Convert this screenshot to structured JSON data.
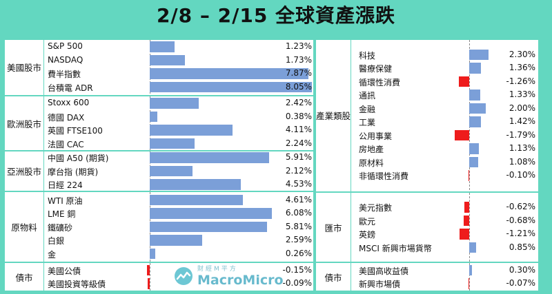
{
  "title": "2/8 – 2/15 全球資產漲跌",
  "watermark": {
    "small": "財經M平方",
    "brand": "MacroMicro"
  },
  "colors": {
    "positive": "#7b9fd8",
    "negative": "#ee1c1c",
    "background": "#63d7c0"
  },
  "chart_data": [
    {
      "type": "bar",
      "orientation": "horizontal",
      "unit": "%",
      "xlim": [
        0,
        8.05
      ],
      "groups": [
        {
          "name": "美國股市",
          "items": [
            {
              "label": "S&P 500",
              "value": 1.23,
              "text": "1.23%"
            },
            {
              "label": "NASDAQ",
              "value": 1.73,
              "text": "1.73%"
            },
            {
              "label": "費半指數",
              "value": 7.87,
              "text": "7.87%"
            },
            {
              "label": "台積電 ADR",
              "value": 8.05,
              "text": "8.05%"
            }
          ]
        },
        {
          "name": "歐洲股市",
          "items": [
            {
              "label": "Stoxx 600",
              "value": 2.42,
              "text": "2.42%"
            },
            {
              "label": "德國 DAX",
              "value": 0.38,
              "text": "0.38%"
            },
            {
              "label": "英國 FTSE100",
              "value": 4.11,
              "text": "4.11%"
            },
            {
              "label": "法國 CAC",
              "value": 2.24,
              "text": "2.24%"
            }
          ]
        },
        {
          "name": "亞洲股市",
          "items": [
            {
              "label": "中國 A50 (期貨)",
              "value": 5.91,
              "text": "5.91%"
            },
            {
              "label": "摩台指 (期貨)",
              "value": 2.12,
              "text": "2.12%"
            },
            {
              "label": "日經 224",
              "value": 4.53,
              "text": "4.53%"
            }
          ]
        },
        {
          "name": "原物料",
          "items": [
            {
              "label": "WTI 原油",
              "value": 4.61,
              "text": "4.61%"
            },
            {
              "label": "LME 銅",
              "value": 6.08,
              "text": "6.08%"
            },
            {
              "label": "鐵礦砂",
              "value": 5.81,
              "text": "5.81%"
            },
            {
              "label": "白銀",
              "value": 2.59,
              "text": "2.59%"
            },
            {
              "label": "金",
              "value": 0.26,
              "text": "0.26%"
            }
          ]
        },
        {
          "name": "債市",
          "items": [
            {
              "label": "美國公債",
              "value": -0.15,
              "text": "-0.15%"
            },
            {
              "label": "美國投資等級債",
              "value": -0.09,
              "text": "-0.09%"
            }
          ]
        }
      ]
    },
    {
      "type": "bar",
      "orientation": "horizontal",
      "unit": "%",
      "xlim": [
        -2.0,
        2.3
      ],
      "groups": [
        {
          "name": "產業類股",
          "items": [
            {
              "label": "科技",
              "value": 2.3,
              "text": "2.30%"
            },
            {
              "label": "醫療保健",
              "value": 1.36,
              "text": "1.36%"
            },
            {
              "label": "循環性消費",
              "value": -1.26,
              "text": "-1.26%"
            },
            {
              "label": "通訊",
              "value": 1.33,
              "text": "1.33%"
            },
            {
              "label": "金融",
              "value": 2.0,
              "text": "2.00%"
            },
            {
              "label": "工業",
              "value": 1.42,
              "text": "1.42%"
            },
            {
              "label": "公用事業",
              "value": -1.79,
              "text": "-1.79%"
            },
            {
              "label": "房地產",
              "value": 1.13,
              "text": "1.13%"
            },
            {
              "label": "原材料",
              "value": 1.08,
              "text": "1.08%"
            },
            {
              "label": "非循環性消費",
              "value": -0.1,
              "text": "-0.10%"
            }
          ]
        },
        {
          "name": "匯市",
          "items": [
            {
              "label": "美元指數",
              "value": -0.62,
              "text": "-0.62%"
            },
            {
              "label": "歐元",
              "value": -0.68,
              "text": "-0.68%"
            },
            {
              "label": "英鎊",
              "value": -1.21,
              "text": "-1.21%"
            },
            {
              "label": "MSCI 新興市場貨幣",
              "value": 0.85,
              "text": "0.85%"
            }
          ]
        },
        {
          "name": "債市",
          "items": [
            {
              "label": "美國高收益債",
              "value": 0.3,
              "text": "0.30%"
            },
            {
              "label": "新興市場債",
              "value": -0.07,
              "text": "-0.07%"
            }
          ]
        }
      ]
    }
  ]
}
